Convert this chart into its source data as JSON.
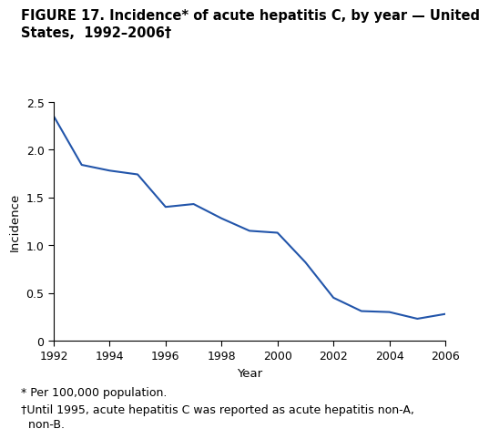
{
  "years": [
    1992,
    1993,
    1994,
    1995,
    1996,
    1997,
    1998,
    1999,
    2000,
    2001,
    2002,
    2003,
    2004,
    2005,
    2006
  ],
  "incidence": [
    2.35,
    1.84,
    1.78,
    1.74,
    1.4,
    1.43,
    1.28,
    1.15,
    1.13,
    0.82,
    0.45,
    0.31,
    0.3,
    0.23,
    0.28
  ],
  "line_color": "#2255aa",
  "title_line1": "FIGURE 17. Incidence* of acute hepatitis C, by year — United",
  "title_line2": "States,  1992–2006†",
  "xlabel": "Year",
  "ylabel": "Incidence",
  "ylim": [
    0,
    2.5
  ],
  "xlim": [
    1992,
    2006
  ],
  "yticks": [
    0,
    0.5,
    1.0,
    1.5,
    2.0,
    2.5
  ],
  "xticks": [
    1992,
    1994,
    1996,
    1998,
    2000,
    2002,
    2004,
    2006
  ],
  "footnote1": "* Per 100,000 population.",
  "footnote2": "†Until 1995, acute hepatitis C was reported as acute hepatitis non-A,",
  "footnote3": "  non-B.",
  "background_color": "#ffffff",
  "title_fontsize": 10.5,
  "axis_fontsize": 9.5,
  "tick_fontsize": 9,
  "footnote_fontsize": 9
}
